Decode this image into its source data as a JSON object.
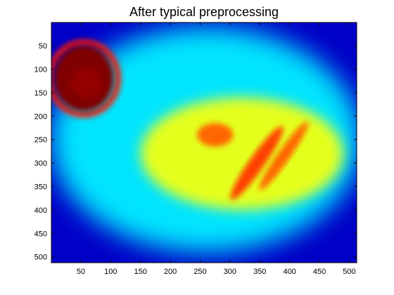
{
  "chart_data": {
    "type": "heatmap",
    "title": "After typical preprocessing",
    "xlabel": "",
    "ylabel": "",
    "xlim": [
      0.5,
      512.5
    ],
    "ylim": [
      512.5,
      0.5
    ],
    "y_axis_direction": "top-to-bottom",
    "x_ticks": [
      50,
      100,
      150,
      200,
      250,
      300,
      350,
      400,
      450,
      500
    ],
    "y_ticks": [
      50,
      100,
      150,
      200,
      250,
      300,
      350,
      400,
      450,
      500
    ],
    "colormap": "jet",
    "colormap_stops": [
      "#00008f",
      "#0000ff",
      "#00ffff",
      "#ffff00",
      "#ff0000",
      "#800000"
    ],
    "grid": false,
    "legend": "none",
    "features": [
      {
        "name": "saturated hot spot",
        "cx": 55,
        "cy": 120,
        "rx": 50,
        "ry": 70,
        "level": 1.0
      },
      {
        "name": "bright spot",
        "cx": 275,
        "cy": 240,
        "rx": 30,
        "ry": 25,
        "level": 0.72
      },
      {
        "name": "diagonal streak A",
        "cx": 345,
        "cy": 300,
        "rx": 75,
        "ry": 16,
        "angle": -55,
        "level": 0.75
      },
      {
        "name": "diagonal streak B",
        "cx": 390,
        "cy": 285,
        "rx": 70,
        "ry": 13,
        "angle": -55,
        "level": 0.72
      },
      {
        "name": "diffuse yellow region",
        "cx": 320,
        "cy": 280,
        "rx": 170,
        "ry": 120,
        "level": 0.58
      },
      {
        "name": "cyan background",
        "cx": 260,
        "cy": 250,
        "rx": 260,
        "ry": 240,
        "level": 0.38
      },
      {
        "name": "dark blue edges",
        "cx": 256,
        "cy": 256,
        "rx": 256,
        "ry": 256,
        "level": 0.1
      }
    ]
  }
}
